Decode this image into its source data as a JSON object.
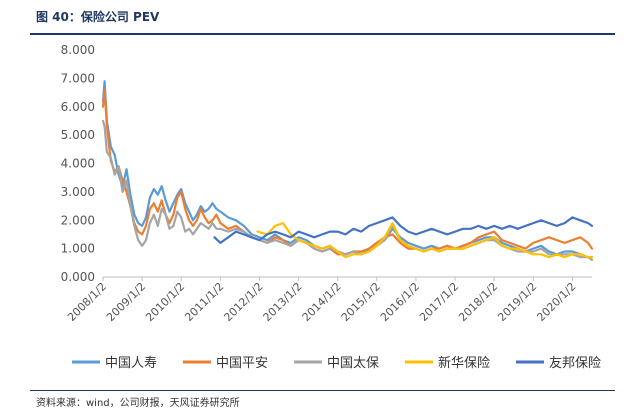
{
  "header": {
    "title": "图 40：保险公司 PEV"
  },
  "footer": {
    "source": "资料来源：wind，公司财报，天风证券研究所"
  },
  "chart_data": {
    "type": "line",
    "title": "保险公司 PEV",
    "xlabel": "",
    "ylabel": "",
    "ylim": [
      0,
      8
    ],
    "y_ticks": [
      "0.000",
      "1.000",
      "2.000",
      "3.000",
      "4.000",
      "5.000",
      "6.000",
      "7.000",
      "8.000"
    ],
    "x_range": [
      2008.0,
      2020.5
    ],
    "x_ticks": [
      {
        "label": "2008/1/2",
        "t": 2008.0
      },
      {
        "label": "2009/1/2",
        "t": 2009.0
      },
      {
        "label": "2010/1/2",
        "t": 2010.0
      },
      {
        "label": "2011/1/2",
        "t": 2011.0
      },
      {
        "label": "2012/1/2",
        "t": 2012.0
      },
      {
        "label": "2013/1/2",
        "t": 2013.0
      },
      {
        "label": "2014/1/2",
        "t": 2014.0
      },
      {
        "label": "2015/1/2",
        "t": 2015.0
      },
      {
        "label": "2016/1/2",
        "t": 2016.0
      },
      {
        "label": "2017/1/2",
        "t": 2017.0
      },
      {
        "label": "2018/1/2",
        "t": 2018.0
      },
      {
        "label": "2019/1/2",
        "t": 2019.0
      },
      {
        "label": "2020/1/2",
        "t": 2020.0
      }
    ],
    "legend_position": "bottom",
    "series": [
      {
        "name": "中国人寿",
        "color": "#5b9bd5",
        "x": [
          2008.0,
          2008.04,
          2008.1,
          2008.2,
          2008.3,
          2008.4,
          2008.5,
          2008.6,
          2008.7,
          2008.8,
          2008.9,
          2009.0,
          2009.1,
          2009.2,
          2009.3,
          2009.4,
          2009.5,
          2009.6,
          2009.7,
          2009.8,
          2009.9,
          2010.0,
          2010.1,
          2010.2,
          2010.3,
          2010.4,
          2010.5,
          2010.6,
          2010.7,
          2010.8,
          2010.9,
          2011.0,
          2011.2,
          2011.4,
          2011.6,
          2011.8,
          2012.0,
          2012.2,
          2012.4,
          2012.6,
          2012.8,
          2013.0,
          2013.2,
          2013.4,
          2013.6,
          2013.8,
          2014.0,
          2014.2,
          2014.4,
          2014.6,
          2014.8,
          2015.0,
          2015.2,
          2015.4,
          2015.6,
          2015.8,
          2016.0,
          2016.2,
          2016.4,
          2016.6,
          2016.8,
          2017.0,
          2017.2,
          2017.4,
          2017.6,
          2017.8,
          2018.0,
          2018.2,
          2018.4,
          2018.6,
          2018.8,
          2019.0,
          2019.2,
          2019.4,
          2019.6,
          2019.8,
          2020.0,
          2020.2,
          2020.4,
          2020.5
        ],
        "values": [
          6.2,
          6.9,
          5.5,
          4.6,
          4.3,
          3.6,
          3.2,
          3.8,
          2.9,
          2.2,
          1.9,
          1.8,
          2.1,
          2.8,
          3.1,
          2.9,
          3.2,
          2.7,
          2.3,
          2.6,
          2.9,
          3.1,
          2.6,
          2.3,
          2.0,
          2.2,
          2.5,
          2.3,
          2.4,
          2.6,
          2.4,
          2.3,
          2.1,
          2.0,
          1.8,
          1.5,
          1.4,
          1.3,
          1.5,
          1.3,
          1.2,
          1.4,
          1.3,
          1.1,
          1.0,
          1.1,
          0.9,
          0.8,
          0.9,
          0.8,
          1.0,
          1.2,
          1.3,
          1.7,
          1.4,
          1.2,
          1.1,
          1.0,
          1.1,
          1.0,
          1.1,
          1.0,
          1.1,
          1.2,
          1.3,
          1.4,
          1.4,
          1.2,
          1.1,
          1.0,
          0.9,
          1.0,
          1.1,
          0.9,
          0.8,
          0.9,
          0.9,
          0.8,
          0.7,
          0.7
        ]
      },
      {
        "name": "中国平安",
        "color": "#ed7d31",
        "x": [
          2008.0,
          2008.04,
          2008.1,
          2008.2,
          2008.3,
          2008.4,
          2008.5,
          2008.6,
          2008.7,
          2008.8,
          2008.9,
          2009.0,
          2009.1,
          2009.2,
          2009.3,
          2009.4,
          2009.5,
          2009.6,
          2009.7,
          2009.8,
          2009.9,
          2010.0,
          2010.1,
          2010.2,
          2010.3,
          2010.4,
          2010.5,
          2010.6,
          2010.7,
          2010.8,
          2010.9,
          2011.0,
          2011.2,
          2011.4,
          2011.6,
          2011.8,
          2012.0,
          2012.2,
          2012.4,
          2012.6,
          2012.8,
          2013.0,
          2013.2,
          2013.4,
          2013.6,
          2013.8,
          2014.0,
          2014.2,
          2014.4,
          2014.6,
          2014.8,
          2015.0,
          2015.2,
          2015.4,
          2015.6,
          2015.8,
          2016.0,
          2016.2,
          2016.4,
          2016.6,
          2016.8,
          2017.0,
          2017.2,
          2017.4,
          2017.6,
          2017.8,
          2018.0,
          2018.2,
          2018.4,
          2018.6,
          2018.8,
          2019.0,
          2019.2,
          2019.4,
          2019.6,
          2019.8,
          2020.0,
          2020.2,
          2020.4,
          2020.5
        ],
        "values": [
          6.0,
          6.6,
          5.3,
          4.1,
          3.7,
          3.9,
          3.4,
          3.0,
          2.5,
          1.9,
          1.6,
          1.5,
          1.8,
          2.4,
          2.6,
          2.3,
          2.7,
          2.2,
          1.9,
          2.2,
          2.8,
          3.0,
          2.4,
          2.0,
          1.8,
          2.0,
          2.4,
          2.1,
          1.9,
          2.0,
          2.2,
          1.9,
          1.7,
          1.8,
          1.6,
          1.4,
          1.3,
          1.2,
          1.4,
          1.3,
          1.1,
          1.3,
          1.2,
          1.0,
          0.9,
          1.0,
          0.8,
          0.8,
          0.9,
          0.9,
          1.0,
          1.2,
          1.4,
          1.5,
          1.2,
          1.0,
          1.0,
          0.9,
          1.0,
          1.0,
          1.1,
          1.0,
          1.1,
          1.2,
          1.4,
          1.5,
          1.6,
          1.3,
          1.2,
          1.1,
          1.0,
          1.2,
          1.3,
          1.4,
          1.3,
          1.2,
          1.3,
          1.4,
          1.2,
          1.0
        ]
      },
      {
        "name": "中国太保",
        "color": "#a5a5a5",
        "x": [
          2008.0,
          2008.04,
          2008.1,
          2008.2,
          2008.3,
          2008.4,
          2008.5,
          2008.6,
          2008.7,
          2008.8,
          2008.9,
          2009.0,
          2009.1,
          2009.2,
          2009.3,
          2009.4,
          2009.5,
          2009.6,
          2009.7,
          2009.8,
          2009.9,
          2010.0,
          2010.1,
          2010.2,
          2010.3,
          2010.4,
          2010.5,
          2010.6,
          2010.7,
          2010.8,
          2010.9,
          2011.0,
          2011.2,
          2011.4,
          2011.6,
          2011.8,
          2012.0,
          2012.2,
          2012.4,
          2012.6,
          2012.8,
          2013.0,
          2013.2,
          2013.4,
          2013.6,
          2013.8,
          2014.0,
          2014.2,
          2014.4,
          2014.6,
          2014.8,
          2015.0,
          2015.2,
          2015.4,
          2015.6,
          2015.8,
          2016.0,
          2016.2,
          2016.4,
          2016.6,
          2016.8,
          2017.0,
          2017.2,
          2017.4,
          2017.6,
          2017.8,
          2018.0,
          2018.2,
          2018.4,
          2018.6,
          2018.8,
          2019.0,
          2019.2,
          2019.4,
          2019.6,
          2019.8,
          2020.0,
          2020.2,
          2020.4,
          2020.5
        ],
        "values": [
          5.5,
          5.3,
          4.4,
          4.2,
          3.6,
          3.9,
          3.0,
          3.4,
          2.5,
          1.8,
          1.3,
          1.1,
          1.3,
          1.9,
          2.2,
          1.8,
          2.4,
          2.2,
          1.7,
          1.8,
          2.3,
          2.1,
          1.6,
          1.7,
          1.5,
          1.7,
          1.9,
          1.8,
          1.7,
          1.9,
          1.7,
          1.7,
          1.6,
          1.7,
          1.6,
          1.4,
          1.3,
          1.2,
          1.3,
          1.2,
          1.1,
          1.3,
          1.2,
          1.0,
          0.9,
          1.0,
          0.9,
          0.8,
          0.9,
          0.8,
          0.9,
          1.1,
          1.3,
          1.8,
          1.3,
          1.1,
          1.0,
          0.9,
          1.0,
          0.9,
          1.0,
          1.0,
          1.0,
          1.1,
          1.2,
          1.3,
          1.3,
          1.1,
          1.0,
          0.9,
          0.9,
          0.9,
          1.0,
          0.8,
          0.8,
          0.8,
          0.8,
          0.7,
          0.7,
          0.6
        ]
      },
      {
        "name": "新华保险",
        "color": "#ffc000",
        "x": [
          2011.95,
          2012.2,
          2012.4,
          2012.6,
          2012.8,
          2013.0,
          2013.2,
          2013.4,
          2013.6,
          2013.8,
          2014.0,
          2014.2,
          2014.4,
          2014.6,
          2014.8,
          2015.0,
          2015.2,
          2015.4,
          2015.6,
          2015.8,
          2016.0,
          2016.2,
          2016.4,
          2016.6,
          2016.8,
          2017.0,
          2017.2,
          2017.4,
          2017.6,
          2017.8,
          2018.0,
          2018.2,
          2018.4,
          2018.6,
          2018.8,
          2019.0,
          2019.2,
          2019.4,
          2019.6,
          2019.8,
          2020.0,
          2020.2,
          2020.4,
          2020.5
        ],
        "values": [
          1.6,
          1.5,
          1.8,
          1.9,
          1.5,
          1.3,
          1.2,
          1.1,
          1.0,
          1.1,
          0.9,
          0.7,
          0.8,
          0.8,
          0.9,
          1.1,
          1.4,
          1.9,
          1.3,
          1.1,
          1.0,
          0.9,
          1.0,
          0.9,
          1.0,
          1.0,
          1.0,
          1.1,
          1.2,
          1.3,
          1.4,
          1.1,
          1.0,
          1.0,
          0.9,
          0.8,
          0.8,
          0.7,
          0.8,
          0.7,
          0.8,
          0.8,
          0.7,
          0.7
        ]
      },
      {
        "name": "友邦保险",
        "color": "#4472c4",
        "x": [
          2010.85,
          2011.0,
          2011.2,
          2011.4,
          2011.6,
          2011.8,
          2012.0,
          2012.2,
          2012.4,
          2012.6,
          2012.8,
          2013.0,
          2013.2,
          2013.4,
          2013.6,
          2013.8,
          2014.0,
          2014.2,
          2014.4,
          2014.6,
          2014.8,
          2015.0,
          2015.2,
          2015.4,
          2015.6,
          2015.8,
          2016.0,
          2016.2,
          2016.4,
          2016.6,
          2016.8,
          2017.0,
          2017.2,
          2017.4,
          2017.6,
          2017.8,
          2018.0,
          2018.2,
          2018.4,
          2018.6,
          2018.8,
          2019.0,
          2019.2,
          2019.4,
          2019.6,
          2019.8,
          2020.0,
          2020.2,
          2020.4,
          2020.5
        ],
        "values": [
          1.4,
          1.2,
          1.4,
          1.6,
          1.5,
          1.4,
          1.3,
          1.5,
          1.6,
          1.5,
          1.4,
          1.6,
          1.5,
          1.4,
          1.5,
          1.6,
          1.6,
          1.5,
          1.7,
          1.6,
          1.8,
          1.9,
          2.0,
          2.1,
          1.8,
          1.6,
          1.5,
          1.6,
          1.7,
          1.6,
          1.5,
          1.6,
          1.7,
          1.7,
          1.8,
          1.7,
          1.8,
          1.7,
          1.8,
          1.7,
          1.8,
          1.9,
          2.0,
          1.9,
          1.8,
          1.9,
          2.1,
          2.0,
          1.9,
          1.8
        ]
      }
    ]
  }
}
